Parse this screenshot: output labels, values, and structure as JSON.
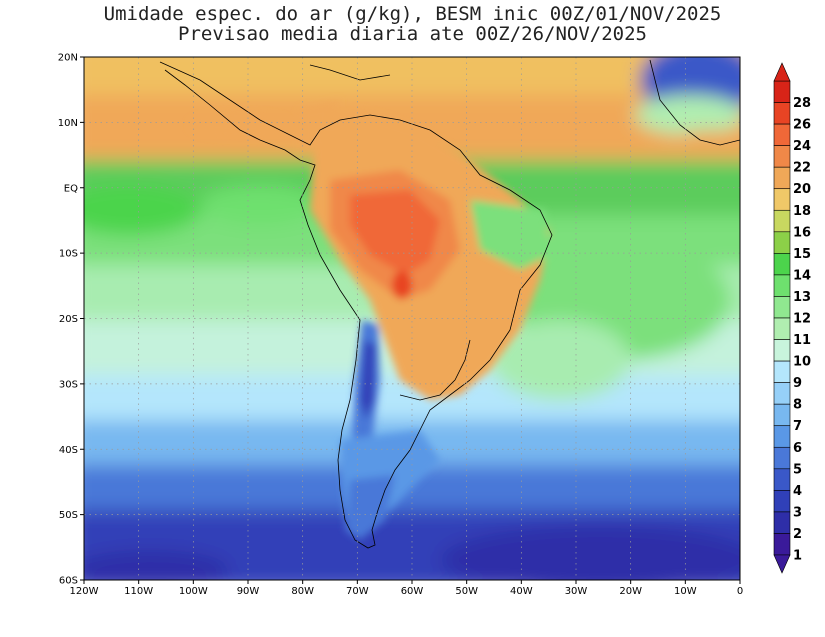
{
  "title": {
    "line1": "Umidade espec. do ar (g/kg), BESM inic 00Z/01/NOV/2025",
    "line2": "Previsao media diaria ate 00Z/26/NOV/2025"
  },
  "map": {
    "lat_labels": [
      "20N",
      "10N",
      "EQ",
      "10S",
      "20S",
      "30S",
      "40S",
      "50S",
      "60S"
    ],
    "lon_labels": [
      "120W",
      "110W",
      "100W",
      "90W",
      "80W",
      "70W",
      "60W",
      "50W",
      "40W",
      "30W",
      "20W",
      "10W",
      "0"
    ],
    "extent": {
      "lon": [
        -120,
        0
      ],
      "lat": [
        -60,
        20
      ]
    }
  },
  "colorbar": {
    "labels": [
      "1",
      "2",
      "3",
      "4",
      "5",
      "6",
      "7",
      "8",
      "9",
      "10",
      "11",
      "12",
      "13",
      "14",
      "15",
      "16",
      "18",
      "20",
      "22",
      "24",
      "26",
      "28"
    ],
    "colors": [
      "#3a1a9a",
      "#2e2ea8",
      "#3040b8",
      "#3a58c8",
      "#4a78d8",
      "#5a98e6",
      "#78b8f0",
      "#96d0f8",
      "#b4e6fc",
      "#c8f4dc",
      "#b0eeb0",
      "#90e890",
      "#6ee06e",
      "#4cd44c",
      "#8cd048",
      "#c8d860",
      "#f0c868",
      "#f0a858",
      "#f08848",
      "#f06838",
      "#e84424",
      "#d82418"
    ]
  }
}
